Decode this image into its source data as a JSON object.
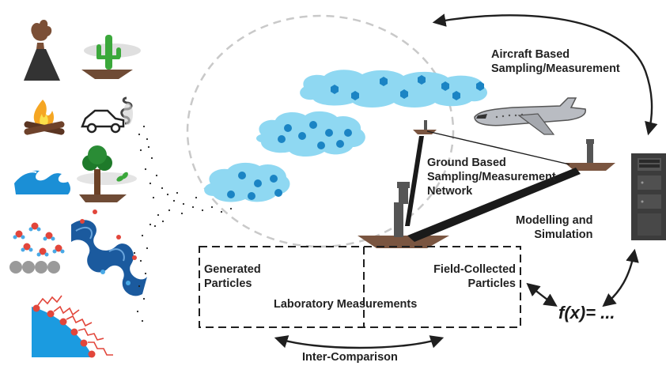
{
  "labels": {
    "aircraft_l1": "Aircraft Based",
    "aircraft_l2": "Sampling/Measurement",
    "ground_l1": "Ground Based",
    "ground_l2": "Sampling/Measurement",
    "ground_l3": "Network",
    "modelling_l1": "Modelling and",
    "modelling_l2": "Simulation",
    "generated_l1": "Generated",
    "generated_l2": "Particles",
    "field_l1": "Field-Collected",
    "field_l2": "Particles",
    "lab": "Laboratory Measurements",
    "inter": "Inter-Comparison",
    "fx": "f(x)= ..."
  },
  "colors": {
    "cloud": "#8fd8f2",
    "particle": "#1b84c4",
    "ground": "#7a5540",
    "plane": "#b9bcc2",
    "server": "#3c3c3c",
    "arrow": "#1f1f1f",
    "dashed": "#c9c9c9"
  },
  "icons": [
    "volcano-icon",
    "desert-cactus-icon",
    "campfire-icon",
    "car-exhaust-icon",
    "ocean-wave-icon",
    "tree-pollen-icon",
    "molecules-icon",
    "protein-icon",
    "surface-chains-icon"
  ]
}
